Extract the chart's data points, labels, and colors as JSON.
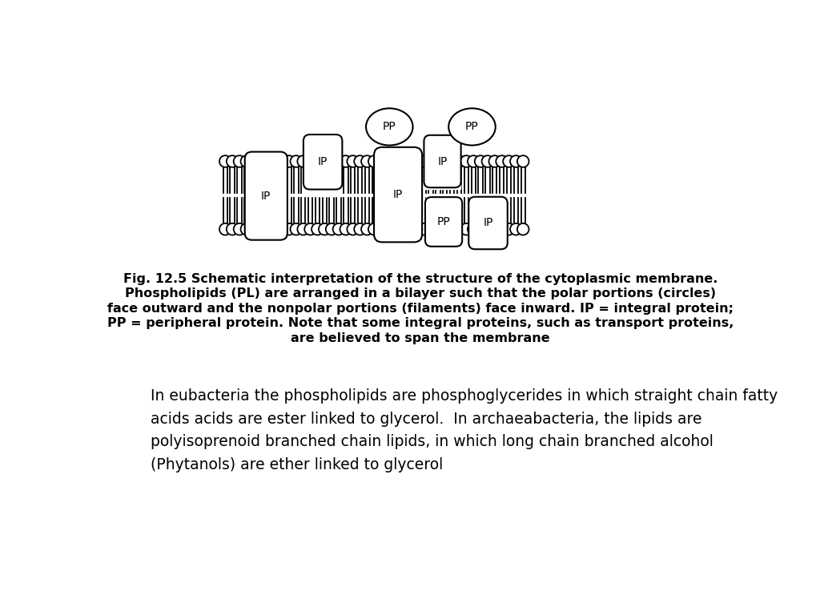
{
  "background_color": "#ffffff",
  "fig_line1": "Fig. 12.5 Schematic interpretation of the structure of the cytoplasmic membrane.",
  "fig_line2": "Phospholipids (PL) are arranged in a bilayer such that the polar portions (circles)",
  "fig_line3": "face outward and the nonpolar portions (filaments) face inward. IP = integral protein;",
  "fig_line4": "PP = peripheral protein. Note that some integral proteins, such as transport proteins,",
  "fig_line5": "are believed to span the membrane",
  "body_text": "In eubacteria the phospholipids are phosphoglycerides in which straight chain fatty\nacids acids are ester linked to glycerol.  In archaeabacteria, the lipids are\npolyisoprenoid branched chain lipids, in which long chain branched alcohol\n(Phytanols) are ether linked to glycerol",
  "caption_fontsize": 11.5,
  "body_text_fontsize": 13.5
}
